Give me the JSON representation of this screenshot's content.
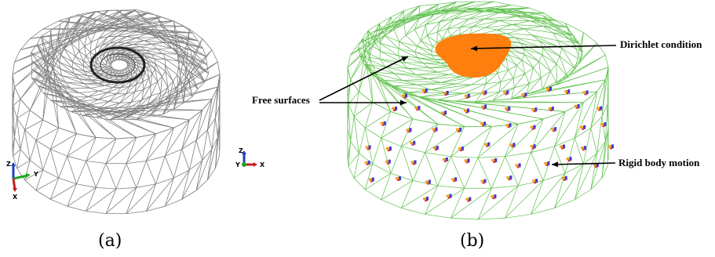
{
  "panels": [
    {
      "caption": "(a)"
    },
    {
      "caption": "(b)"
    }
  ],
  "annotations": {
    "dirichlet": "Dirichlet condition",
    "free_surfaces": "Free surfaces",
    "rigid_body": "Rigid body motion"
  },
  "triads": [
    {
      "labels": [
        "Z",
        "Y",
        "X"
      ]
    },
    {
      "labels": [
        "Z",
        "Y",
        "X"
      ]
    }
  ],
  "colors": {
    "mesh_a": "#808080",
    "mesh_b": "#5cbf4a",
    "dirichlet_patch": "#ff7f0e",
    "node_marker_blue": "#3b3bd6",
    "node_marker_orange": "#ff9a1a",
    "axis_z": "#1f3fbf",
    "axis_y": "#1fa51f",
    "axis_x": "#c21f1f"
  }
}
